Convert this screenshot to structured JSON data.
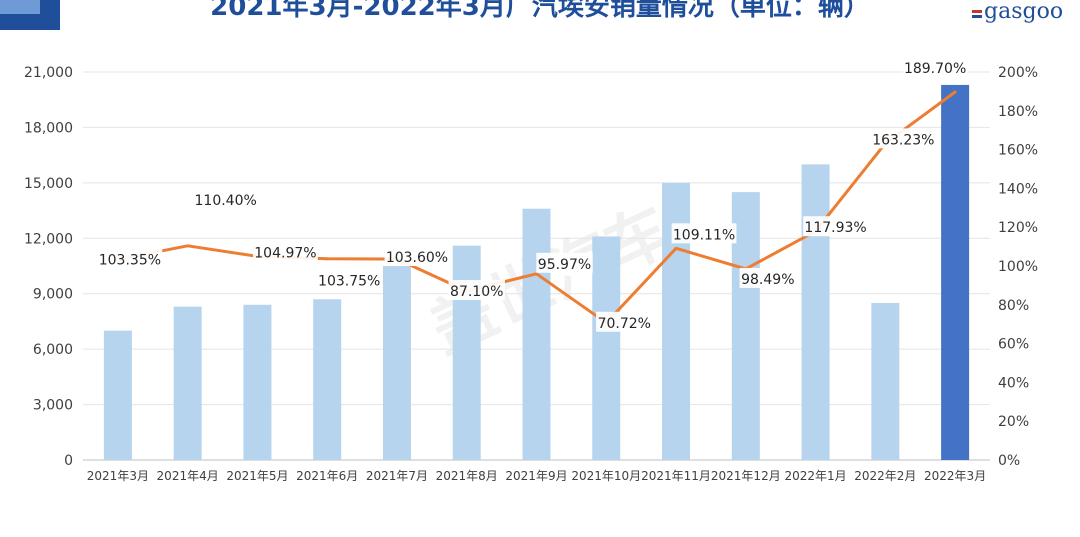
{
  "title": "2021年3月-2022年3月广汽埃安销量情况（单位：辆）",
  "logo_text": "gasgoo",
  "watermark": "盖世汽车",
  "chart_data": {
    "type": "bar",
    "categories": [
      "2021年3月",
      "2021年4月",
      "2021年5月",
      "2021年6月",
      "2021年7月",
      "2021年8月",
      "2021年9月",
      "2021年10月",
      "2021年11月",
      "2021年12月",
      "2022年1月",
      "2022年2月",
      "2022年3月"
    ],
    "series": [
      {
        "type": "bar",
        "axis": "left",
        "values": [
          7000,
          8300,
          8400,
          8700,
          10500,
          11600,
          13600,
          12100,
          15000,
          14500,
          16000,
          8500,
          20300
        ],
        "colors": [
          "#b7d4ee",
          "#b7d4ee",
          "#b7d4ee",
          "#b7d4ee",
          "#b7d4ee",
          "#b7d4ee",
          "#b7d4ee",
          "#b7d4ee",
          "#b7d4ee",
          "#b7d4ee",
          "#b7d4ee",
          "#b7d4ee",
          "#4472c4"
        ]
      },
      {
        "type": "line",
        "axis": "right",
        "color": "#ed7d31",
        "values": [
          103.35,
          110.4,
          104.97,
          103.75,
          103.6,
          87.1,
          95.97,
          70.72,
          109.11,
          98.49,
          117.93,
          163.23,
          189.7
        ],
        "labels": [
          "103.35%",
          "110.40%",
          "104.97%",
          "103.75%",
          "103.60%",
          "87.10%",
          "95.97%",
          "70.72%",
          "109.11%",
          "98.49%",
          "117.93%",
          "163.23%",
          "189.70%"
        ]
      }
    ],
    "y_left": {
      "min": 0,
      "max": 21000,
      "ticks": [
        "0",
        "3,000",
        "6,000",
        "9,000",
        "12,000",
        "15,000",
        "18,000",
        "21,000"
      ]
    },
    "y_right": {
      "min": 0,
      "max": 200,
      "ticks": [
        "0%",
        "20%",
        "40%",
        "60%",
        "80%",
        "100%",
        "120%",
        "140%",
        "160%",
        "180%",
        "200%"
      ]
    },
    "grid": true,
    "legend": "none"
  }
}
